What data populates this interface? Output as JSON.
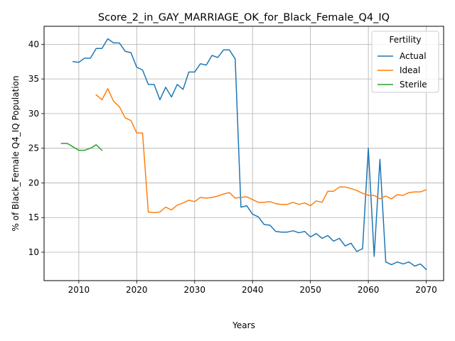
{
  "chart_data": {
    "type": "line",
    "title": "Score_2_in_GAY_MARRIAGE_OK_for_Black_Female_Q4_IQ",
    "xlabel": "Years",
    "ylabel": "% of Black_Female Q4_IQ Population",
    "xlim": [
      2004,
      2073
    ],
    "ylim": [
      5.9,
      42.6
    ],
    "xticks": [
      2010,
      2020,
      2030,
      2040,
      2050,
      2060,
      2070
    ],
    "yticks": [
      10,
      15,
      20,
      25,
      30,
      35,
      40
    ],
    "grid": true,
    "legend": {
      "title": "Fertility",
      "placement": "top-right"
    },
    "series": [
      {
        "name": "Actual",
        "color": "#1f77b4",
        "x": [
          2009,
          2010,
          2011,
          2012,
          2013,
          2014,
          2015,
          2016,
          2017,
          2018,
          2019,
          2020,
          2021,
          2022,
          2023,
          2024,
          2025,
          2026,
          2027,
          2028,
          2029,
          2030,
          2031,
          2032,
          2033,
          2034,
          2035,
          2036,
          2037,
          2038,
          2039,
          2040,
          2041,
          2042,
          2043,
          2044,
          2045,
          2046,
          2047,
          2048,
          2049,
          2050,
          2051,
          2052,
          2053,
          2054,
          2055,
          2056,
          2057,
          2058,
          2059,
          2060,
          2061,
          2062,
          2063,
          2064,
          2065,
          2066,
          2067,
          2068,
          2069,
          2070
        ],
        "y": [
          37.5,
          37.4,
          38.0,
          38.0,
          39.4,
          39.4,
          40.8,
          40.2,
          40.2,
          39.0,
          38.8,
          36.7,
          36.3,
          34.2,
          34.2,
          32.0,
          33.8,
          32.4,
          34.2,
          33.5,
          36.0,
          36.0,
          37.2,
          37.0,
          38.4,
          38.1,
          39.2,
          39.2,
          37.9,
          16.5,
          16.7,
          15.5,
          15.1,
          14.0,
          13.9,
          13.0,
          12.9,
          12.9,
          13.1,
          12.8,
          13.0,
          12.2,
          12.7,
          12.0,
          12.4,
          11.6,
          12.0,
          10.9,
          11.3,
          10.1,
          10.5,
          25.0,
          9.4,
          23.4,
          8.6,
          8.2,
          8.6,
          8.3,
          8.6,
          8.0,
          8.3,
          7.5
        ]
      },
      {
        "name": "Ideal",
        "color": "#ff7f0e",
        "x": [
          2013,
          2014,
          2015,
          2016,
          2017,
          2018,
          2019,
          2020,
          2021,
          2022,
          2023,
          2024,
          2025,
          2026,
          2027,
          2028,
          2029,
          2030,
          2031,
          2032,
          2033,
          2034,
          2035,
          2036,
          2037,
          2038,
          2039,
          2040,
          2041,
          2042,
          2043,
          2044,
          2045,
          2046,
          2047,
          2048,
          2049,
          2050,
          2051,
          2052,
          2053,
          2054,
          2055,
          2056,
          2057,
          2058,
          2059,
          2060,
          2061,
          2062,
          2063,
          2064,
          2065,
          2066,
          2067,
          2068,
          2069,
          2070
        ],
        "y": [
          32.7,
          32.0,
          33.6,
          31.8,
          31.0,
          29.4,
          29.0,
          27.2,
          27.2,
          15.8,
          15.7,
          15.8,
          16.5,
          16.1,
          16.8,
          17.1,
          17.5,
          17.3,
          17.9,
          17.8,
          17.9,
          18.1,
          18.4,
          18.6,
          17.8,
          17.9,
          18.0,
          17.6,
          17.2,
          17.2,
          17.3,
          17.0,
          16.9,
          16.9,
          17.2,
          16.9,
          17.1,
          16.7,
          17.4,
          17.2,
          18.8,
          18.8,
          19.4,
          19.4,
          19.2,
          18.9,
          18.5,
          18.2,
          18.2,
          17.7,
          18.1,
          17.7,
          18.3,
          18.2,
          18.6,
          18.7,
          18.7,
          19.0
        ]
      },
      {
        "name": "Sterile",
        "color": "#2ca02c",
        "x": [
          2007,
          2008,
          2009,
          2010,
          2011,
          2012,
          2013,
          2014
        ],
        "y": [
          25.7,
          25.7,
          25.2,
          24.7,
          24.7,
          25.0,
          25.5,
          24.7
        ]
      }
    ]
  }
}
